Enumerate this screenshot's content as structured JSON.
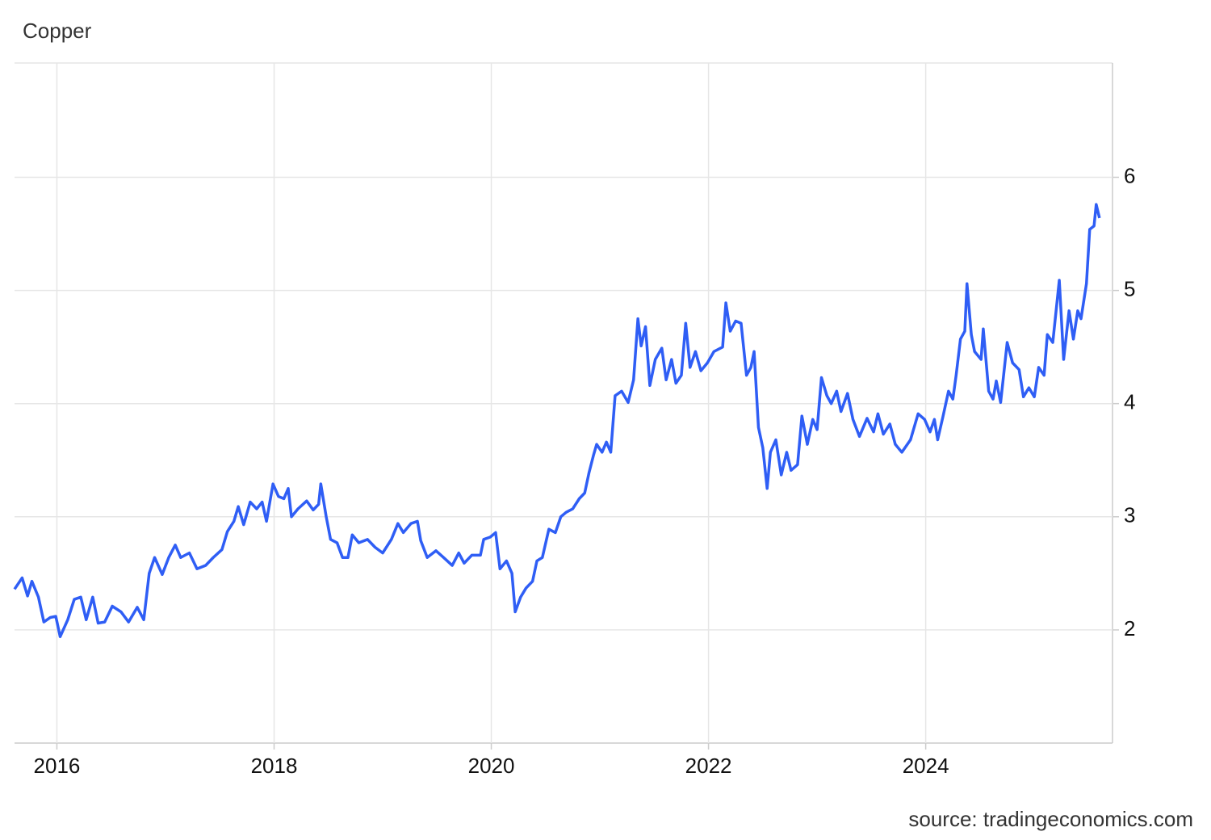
{
  "chart_data": {
    "type": "line",
    "title": "Copper",
    "source": "source: tradingeconomics.com",
    "color": "#2f5ef5",
    "grid": true,
    "xlim": [
      2015.61,
      2025.72
    ],
    "xticks": [
      2016,
      2018,
      2020,
      2022,
      2024
    ],
    "ylim": [
      1,
      7.01
    ],
    "yticks": [
      2,
      3,
      4,
      5,
      6
    ],
    "x": [
      2015.61,
      2015.68,
      2015.73,
      2015.77,
      2015.83,
      2015.88,
      2015.94,
      2015.99,
      2016.03,
      2016.1,
      2016.16,
      2016.22,
      2016.27,
      2016.33,
      2016.38,
      2016.44,
      2016.51,
      2016.59,
      2016.66,
      2016.74,
      2016.8,
      2016.85,
      2016.9,
      2016.97,
      2017.03,
      2017.09,
      2017.14,
      2017.22,
      2017.29,
      2017.37,
      2017.44,
      2017.52,
      2017.57,
      2017.63,
      2017.67,
      2017.72,
      2017.78,
      2017.84,
      2017.89,
      2017.93,
      2017.99,
      2018.04,
      2018.09,
      2018.13,
      2018.16,
      2018.22,
      2018.3,
      2018.36,
      2018.41,
      2018.43,
      2018.48,
      2018.52,
      2018.58,
      2018.63,
      2018.68,
      2018.72,
      2018.78,
      2018.86,
      2018.93,
      2019.0,
      2019.08,
      2019.14,
      2019.19,
      2019.26,
      2019.32,
      2019.35,
      2019.41,
      2019.49,
      2019.56,
      2019.64,
      2019.7,
      2019.75,
      2019.82,
      2019.9,
      2019.93,
      2019.99,
      2020.04,
      2020.08,
      2020.14,
      2020.19,
      2020.22,
      2020.27,
      2020.32,
      2020.38,
      2020.42,
      2020.47,
      2020.53,
      2020.59,
      2020.64,
      2020.69,
      2020.75,
      2020.81,
      2020.86,
      2020.9,
      2020.94,
      2020.97,
      2021.02,
      2021.06,
      2021.1,
      2021.14,
      2021.2,
      2021.26,
      2021.31,
      2021.35,
      2021.38,
      2021.42,
      2021.46,
      2021.51,
      2021.57,
      2021.61,
      2021.66,
      2021.7,
      2021.75,
      2021.79,
      2021.83,
      2021.88,
      2021.93,
      2021.99,
      2022.05,
      2022.13,
      2022.16,
      2022.2,
      2022.25,
      2022.3,
      2022.35,
      2022.39,
      2022.42,
      2022.46,
      2022.5,
      2022.54,
      2022.57,
      2022.62,
      2022.67,
      2022.72,
      2022.76,
      2022.82,
      2022.86,
      2022.91,
      2022.96,
      2023.0,
      2023.04,
      2023.09,
      2023.13,
      2023.18,
      2023.22,
      2023.28,
      2023.33,
      2023.39,
      2023.46,
      2023.52,
      2023.56,
      2023.61,
      2023.67,
      2023.72,
      2023.78,
      2023.86,
      2023.93,
      2023.99,
      2024.04,
      2024.08,
      2024.11,
      2024.16,
      2024.21,
      2024.25,
      2024.28,
      2024.32,
      2024.36,
      2024.38,
      2024.42,
      2024.45,
      2024.51,
      2024.53,
      2024.58,
      2024.62,
      2024.65,
      2024.69,
      2024.75,
      2024.8,
      2024.86,
      2024.9,
      2024.95,
      2025.0,
      2025.04,
      2025.09,
      2025.12,
      2025.17,
      2025.23,
      2025.27,
      2025.32,
      2025.36,
      2025.4,
      2025.43,
      2025.48,
      2025.51,
      2025.55,
      2025.57,
      2025.6
    ],
    "values": [
      2.36,
      2.46,
      2.3,
      2.43,
      2.29,
      2.07,
      2.11,
      2.12,
      1.94,
      2.09,
      2.27,
      2.29,
      2.09,
      2.29,
      2.06,
      2.07,
      2.21,
      2.16,
      2.07,
      2.2,
      2.09,
      2.5,
      2.64,
      2.49,
      2.64,
      2.75,
      2.64,
      2.68,
      2.54,
      2.57,
      2.64,
      2.71,
      2.87,
      2.96,
      3.09,
      2.93,
      3.13,
      3.07,
      3.13,
      2.96,
      3.29,
      3.18,
      3.16,
      3.25,
      3.0,
      3.07,
      3.14,
      3.06,
      3.11,
      3.29,
      3.0,
      2.8,
      2.77,
      2.64,
      2.64,
      2.84,
      2.77,
      2.8,
      2.73,
      2.68,
      2.8,
      2.94,
      2.86,
      2.94,
      2.96,
      2.79,
      2.64,
      2.7,
      2.64,
      2.57,
      2.68,
      2.59,
      2.66,
      2.66,
      2.8,
      2.82,
      2.86,
      2.54,
      2.61,
      2.5,
      2.16,
      2.29,
      2.37,
      2.43,
      2.61,
      2.64,
      2.89,
      2.86,
      3.0,
      3.04,
      3.07,
      3.16,
      3.21,
      3.39,
      3.54,
      3.64,
      3.57,
      3.66,
      3.57,
      4.07,
      4.11,
      4.01,
      4.21,
      4.75,
      4.51,
      4.68,
      4.16,
      4.39,
      4.49,
      4.21,
      4.39,
      4.18,
      4.25,
      4.71,
      4.32,
      4.46,
      4.29,
      4.36,
      4.46,
      4.5,
      4.89,
      4.64,
      4.73,
      4.71,
      4.25,
      4.32,
      4.46,
      3.79,
      3.61,
      3.25,
      3.57,
      3.68,
      3.37,
      3.57,
      3.41,
      3.46,
      3.89,
      3.64,
      3.86,
      3.77,
      4.23,
      4.07,
      4.0,
      4.11,
      3.93,
      4.09,
      3.86,
      3.71,
      3.87,
      3.75,
      3.91,
      3.73,
      3.82,
      3.64,
      3.57,
      3.68,
      3.91,
      3.86,
      3.75,
      3.86,
      3.68,
      3.89,
      4.11,
      4.04,
      4.25,
      4.57,
      4.64,
      5.06,
      4.61,
      4.46,
      4.39,
      4.66,
      4.11,
      4.04,
      4.2,
      4.01,
      4.54,
      4.36,
      4.3,
      4.06,
      4.14,
      4.06,
      4.32,
      4.25,
      4.61,
      4.54,
      5.09,
      4.39,
      4.82,
      4.57,
      4.82,
      4.75,
      5.06,
      5.54,
      5.57,
      5.76,
      5.64
    ]
  }
}
